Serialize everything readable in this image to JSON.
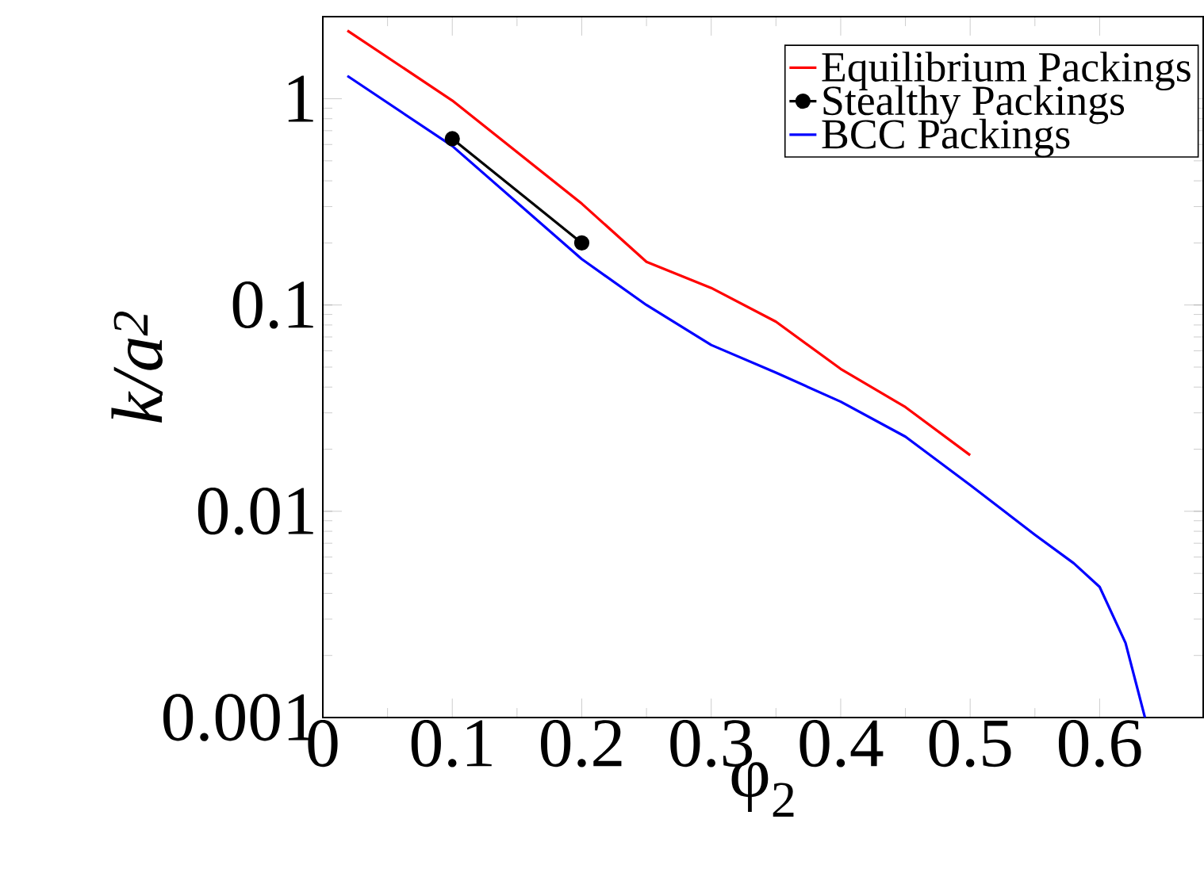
{
  "chart_data": {
    "type": "line",
    "xlabel": "φ$_{2}$",
    "ylabel": "k/a$^{2}$",
    "log": "y",
    "xlim": [
      0,
      0.68
    ],
    "ylim": [
      0.001,
      2.5
    ],
    "xticks": [
      0,
      0.1,
      0.2,
      0.3,
      0.4,
      0.5,
      0.6
    ],
    "yticks": [
      0.001,
      0.01,
      0.1,
      1
    ],
    "grid": false,
    "legend": "top right",
    "line_style": "solid",
    "series": [
      {
        "name": "Equilibrium Packings",
        "color": "#ff0000",
        "marker": "none",
        "x": [
          0.019,
          0.1,
          0.2,
          0.25,
          0.3,
          0.35,
          0.4,
          0.45,
          0.5
        ],
        "values": [
          2.14,
          0.98,
          0.31,
          0.162,
          0.121,
          0.083,
          0.049,
          0.032,
          0.0187
        ]
      },
      {
        "name": "Stealthy Packings",
        "color": "#000000",
        "marker": "circle",
        "x": [
          0.1,
          0.2
        ],
        "values": [
          0.64,
          0.2
        ]
      },
      {
        "name": "BCC Packings",
        "color": "#0000ff",
        "marker": "none",
        "x": [
          0.019,
          0.1,
          0.2,
          0.25,
          0.3,
          0.35,
          0.4,
          0.45,
          0.5,
          0.55,
          0.58,
          0.6,
          0.62,
          0.635
        ],
        "values": [
          1.29,
          0.59,
          0.167,
          0.1,
          0.064,
          0.047,
          0.034,
          0.023,
          0.0134,
          0.0077,
          0.0056,
          0.0043,
          0.0023,
          0.001
        ]
      }
    ]
  }
}
